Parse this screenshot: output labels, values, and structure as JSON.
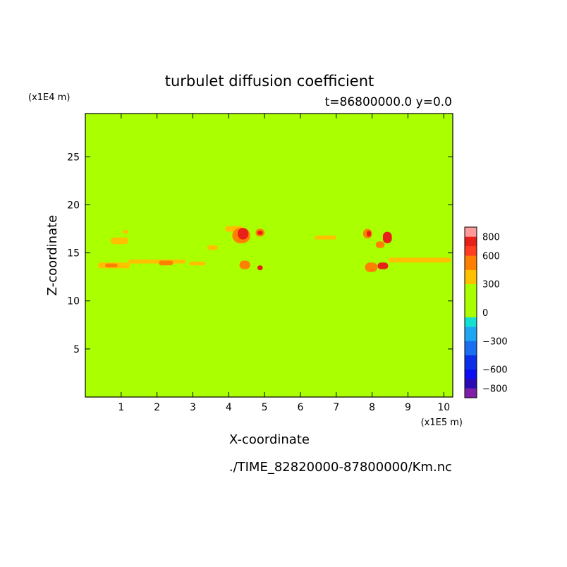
{
  "chart_data": {
    "type": "heatmap",
    "title": "turbulet diffusion coefficient",
    "subtitle": "t=86800000.0 y=0.0",
    "xlabel": "X-coordinate",
    "ylabel": "Z-coordinate",
    "x_unit": "(x1E5 m)",
    "y_unit": "(x1E4 m)",
    "source_file": "./TIME_82820000-87800000/Km.nc",
    "xlim": [
      0,
      10.25
    ],
    "ylim": [
      0,
      29.5
    ],
    "x_ticks": [
      1,
      2,
      3,
      4,
      5,
      6,
      7,
      8,
      9,
      10
    ],
    "y_ticks": [
      5,
      10,
      15,
      20,
      25
    ],
    "background_level": 0,
    "colorbar": {
      "levels": [
        {
          "lo": -900,
          "hi": -800,
          "color": "#7f1fa8"
        },
        {
          "lo": -800,
          "hi": -700,
          "color": "#2b0bb4"
        },
        {
          "lo": -700,
          "hi": -600,
          "color": "#0b0ff0"
        },
        {
          "lo": -600,
          "hi": -450,
          "color": "#0a2fe6"
        },
        {
          "lo": -450,
          "hi": -300,
          "color": "#1a6ef0"
        },
        {
          "lo": -300,
          "hi": -150,
          "color": "#1fa6f2"
        },
        {
          "lo": -150,
          "hi": -50,
          "color": "#14e0d2"
        },
        {
          "lo": -50,
          "hi": 50,
          "color": "#aaff00"
        },
        {
          "lo": 50,
          "hi": 300,
          "color": "#aaff00"
        },
        {
          "lo": 300,
          "hi": 450,
          "color": "#ffc000"
        },
        {
          "lo": 450,
          "hi": 600,
          "color": "#ff8000"
        },
        {
          "lo": 600,
          "hi": 700,
          "color": "#ff3d20"
        },
        {
          "lo": 700,
          "hi": 800,
          "color": "#e8201a"
        },
        {
          "lo": 800,
          "hi": 900,
          "color": "#ff9a9a"
        }
      ],
      "tick_labels": [
        "800",
        "600",
        "300",
        "0",
        "−300",
        "−600",
        "−800"
      ],
      "tick_values": [
        800,
        600,
        300,
        0,
        -300,
        -600,
        -800
      ]
    },
    "features": [
      {
        "x0": 0.35,
        "x1": 1.25,
        "z0": 13.4,
        "z1": 14.0,
        "value": 350
      },
      {
        "x0": 0.55,
        "x1": 0.9,
        "z0": 13.5,
        "z1": 13.9,
        "value": 500
      },
      {
        "x0": 1.2,
        "x1": 2.8,
        "z0": 13.9,
        "z1": 14.3,
        "value": 350
      },
      {
        "x0": 2.05,
        "x1": 2.45,
        "z0": 13.7,
        "z1": 14.2,
        "value": 500
      },
      {
        "x0": 0.7,
        "x1": 1.2,
        "z0": 15.9,
        "z1": 16.6,
        "value": 350
      },
      {
        "x0": 1.05,
        "x1": 1.2,
        "z0": 17.0,
        "z1": 17.4,
        "value": 350
      },
      {
        "x0": 2.9,
        "x1": 3.35,
        "z0": 13.7,
        "z1": 14.1,
        "value": 350
      },
      {
        "x0": 3.4,
        "x1": 3.7,
        "z0": 15.3,
        "z1": 15.8,
        "value": 350
      },
      {
        "x0": 3.9,
        "x1": 4.4,
        "z0": 17.2,
        "z1": 17.8,
        "value": 350
      },
      {
        "x0": 4.1,
        "x1": 4.6,
        "z0": 16.0,
        "z1": 17.6,
        "value": 500
      },
      {
        "x0": 4.25,
        "x1": 4.55,
        "z0": 16.4,
        "z1": 17.6,
        "value": 750
      },
      {
        "x0": 4.75,
        "x1": 5.0,
        "z0": 16.7,
        "z1": 17.5,
        "value": 500
      },
      {
        "x0": 4.8,
        "x1": 4.95,
        "z0": 16.9,
        "z1": 17.3,
        "value": 750
      },
      {
        "x0": 4.3,
        "x1": 4.6,
        "z0": 13.3,
        "z1": 14.2,
        "value": 500
      },
      {
        "x0": 4.8,
        "x1": 4.95,
        "z0": 13.2,
        "z1": 13.7,
        "value": 750
      },
      {
        "x0": 6.4,
        "x1": 7.0,
        "z0": 16.4,
        "z1": 16.8,
        "value": 350
      },
      {
        "x0": 7.75,
        "x1": 8.0,
        "z0": 16.5,
        "z1": 17.5,
        "value": 500
      },
      {
        "x0": 7.85,
        "x1": 7.97,
        "z0": 16.7,
        "z1": 17.3,
        "value": 750
      },
      {
        "x0": 8.1,
        "x1": 8.35,
        "z0": 15.5,
        "z1": 16.2,
        "value": 500
      },
      {
        "x0": 8.3,
        "x1": 8.55,
        "z0": 16.0,
        "z1": 17.2,
        "value": 750
      },
      {
        "x0": 7.8,
        "x1": 8.15,
        "z0": 13.0,
        "z1": 14.0,
        "value": 500
      },
      {
        "x0": 8.15,
        "x1": 8.45,
        "z0": 13.3,
        "z1": 14.0,
        "value": 750
      },
      {
        "x0": 8.45,
        "x1": 10.2,
        "z0": 14.0,
        "z1": 14.5,
        "value": 350
      }
    ]
  }
}
